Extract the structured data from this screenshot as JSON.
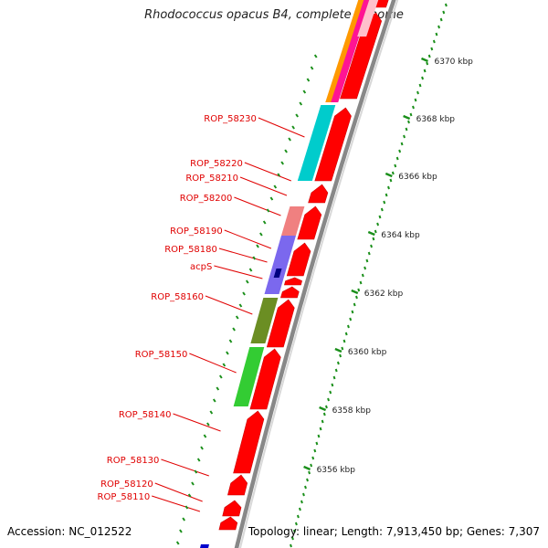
{
  "title": "Rhodococcus opacus B4, complete genome",
  "accession": "Accession: NC_012522",
  "summary": "Topology: linear; Length: 7,913,450 bp; Genes: 7,307",
  "gene_labels": [
    "ROP_58230",
    "ROP_58220",
    "ROP_58210",
    "ROP_58200",
    "ROP_58190",
    "ROP_58180",
    "acpS",
    "ROP_58160",
    "ROP_58150",
    "ROP_58140",
    "ROP_58130",
    "ROP_58120",
    "ROP_58110"
  ],
  "ruler_labels": [
    "6370 kbp",
    "6368 kbp",
    "6366 kbp",
    "6364 kbp",
    "6362 kbp",
    "6360 kbp",
    "6358 kbp",
    "6356 kbp"
  ],
  "colors": {
    "label": "#e00000",
    "cds": "#ff0000",
    "backbone": "#888888",
    "ruler": "#1a8f1a",
    "cog_orange": "#ff9900",
    "cog_magenta": "#ff1493",
    "cog_pink": "#ffc0cb",
    "cog_cyan": "#00cccc",
    "cog_rose": "#f08080",
    "cog_slate": "#7b68ee",
    "cog_navy": "#000080",
    "cog_olive": "#6b8e23",
    "cog_green": "#33cc33",
    "cog_blue": "#0000cc"
  }
}
